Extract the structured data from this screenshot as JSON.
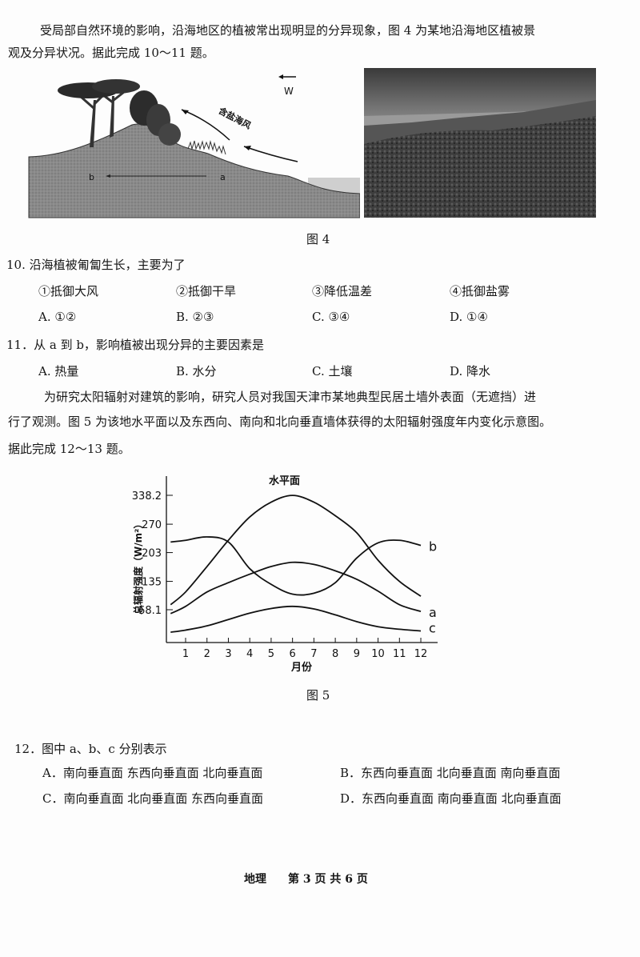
{
  "intro": {
    "line1": "受局部自然环境的影响，沿海地区的植被常出现明显的分异现象，图 4 为某地沿海地区植被景",
    "line2": "观及分异状况。据此完成 10～11 题。"
  },
  "figure4": {
    "direction_label": "W",
    "wind_label": "含盐海风",
    "point_a": "a",
    "point_b": "b",
    "caption": "图 4"
  },
  "q10": {
    "stem": "10. 沿海植被匍匐生长，主要为了",
    "items": [
      "①抵御大风",
      "②抵御干旱",
      "③降低温差",
      "④抵御盐雾"
    ],
    "options": [
      "A. ①②",
      "B. ②③",
      "C. ③④",
      "D. ①④"
    ]
  },
  "q11": {
    "stem": "11．从 a 到 b，影响植被出现分异的主要因素是",
    "options": [
      "A. 热量",
      "B. 水分",
      "C. 土壤",
      "D. 降水"
    ]
  },
  "para2": {
    "line1": "为研究太阳辐射对建筑的影响，研究人员对我国天津市某地典型民居土墙外表面（无遮挡）进",
    "line2": "行了观测。图 5 为该地水平面以及东西向、南向和北向垂直墙体获得的太阳辐射强度年内变化示意图。",
    "line3": "据此完成 12～13 题。"
  },
  "chart_data": {
    "type": "line",
    "xlabel": "月份",
    "ylabel": "总辐射强度（W/m²）",
    "x": [
      1,
      2,
      3,
      4,
      5,
      6,
      7,
      8,
      9,
      10,
      11,
      12
    ],
    "x_tick_labels": [
      "1",
      "2",
      "3",
      "4",
      "5",
      "6",
      "7",
      "8",
      "9",
      "10",
      "11",
      "12"
    ],
    "y_tick_labels": [
      "68.1",
      "135",
      "203",
      "270",
      "338.2"
    ],
    "y_ticks": [
      68.1,
      135,
      203,
      270,
      338.2
    ],
    "ylim": [
      -9,
      370
    ],
    "grid": false,
    "series": [
      {
        "name": "水平面",
        "values": [
          110,
          170,
          232,
          287,
          322,
          338,
          322,
          290,
          250,
          185,
          135,
          100
        ]
      },
      {
        "name": "b",
        "values": [
          232,
          240,
          228,
          165,
          128,
          105,
          107,
          132,
          190,
          226,
          232,
          220
        ]
      },
      {
        "name": "a",
        "values": [
          76,
          110,
          132,
          152,
          170,
          180,
          175,
          160,
          140,
          112,
          80,
          64
        ]
      },
      {
        "name": "c",
        "values": [
          20,
          30,
          45,
          60,
          71,
          76,
          70,
          56,
          40,
          28,
          22,
          18
        ]
      }
    ],
    "caption": "图 5"
  },
  "q12": {
    "stem": "12．图中 a、b、c 分别表示",
    "options": [
      "A．南向垂直面  东西向垂直面  北向垂直面",
      "B．东西向垂直面  北向垂直面  南向垂直面",
      "C．南向垂直面  北向垂直面  东西向垂直面",
      "D．东西向垂直面  南向垂直面  北向垂直面"
    ]
  },
  "footer": {
    "subject": "地理",
    "page": "第 3 页  共 6 页"
  }
}
